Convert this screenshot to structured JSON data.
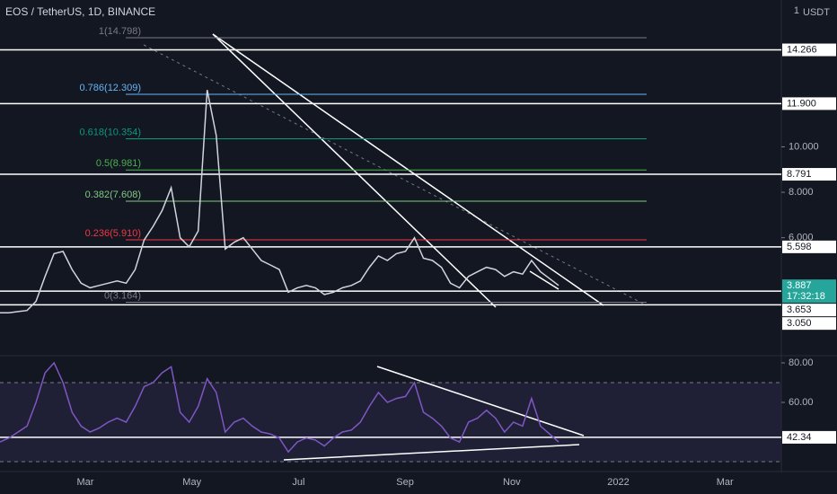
{
  "header": {
    "title": "EOS / TetherUS, 1D, BINANCE"
  },
  "x_labels": [
    "Mar",
    "May",
    "Jul",
    "Sep",
    "Nov",
    "2022",
    "Mar"
  ],
  "chart_data": [
    {
      "type": "line",
      "unit": "USDT",
      "scale_label": "1",
      "ylim": [
        0.85,
        16.46
      ],
      "yticks": [
        {
          "value": 10,
          "label": "10.000"
        },
        {
          "value": 8,
          "label": "8.000"
        },
        {
          "value": 6,
          "label": "6.000"
        }
      ],
      "series": [
        {
          "color": "#d1d4dc",
          "values": [
            2.7,
            2.7,
            2.75,
            2.8,
            3.2,
            4.3,
            5.3,
            5.4,
            4.6,
            4.0,
            3.8,
            3.9,
            4.0,
            4.1,
            4.0,
            4.6,
            5.9,
            6.5,
            7.2,
            8.2,
            6.0,
            5.6,
            6.3,
            12.5,
            10.5,
            5.5,
            5.8,
            6.0,
            5.5,
            5.0,
            4.8,
            4.6,
            3.6,
            3.8,
            3.9,
            3.8,
            3.5,
            3.6,
            3.8,
            3.9,
            4.1,
            4.7,
            5.2,
            5.0,
            5.3,
            5.4,
            6.0,
            5.1,
            5.0,
            4.7,
            4.0,
            3.8,
            4.3,
            4.5,
            4.7,
            4.6,
            4.3,
            4.5,
            4.4,
            5.0,
            4.5,
            4.2,
            3.9
          ]
        }
      ],
      "fib_levels": [
        {
          "value": 14.798,
          "label": "1(14.798)",
          "color": "#787b86"
        },
        {
          "value": 12.309,
          "label": "0.786(12.309)",
          "color": "#64b5f6"
        },
        {
          "value": 10.354,
          "label": "0.618(10.354)",
          "color": "#089981"
        },
        {
          "value": 8.981,
          "label": "0.5(8.981)",
          "color": "#4caf50"
        },
        {
          "value": 7.608,
          "label": "0.382(7.608)",
          "color": "#81c784"
        },
        {
          "value": 5.91,
          "label": "0.236(5.910)",
          "color": "#f23645"
        },
        {
          "value": 3.164,
          "label": "0(3.164)",
          "color": "#787b86"
        }
      ],
      "price_lines": [
        {
          "value": 14.266,
          "label": "14.266"
        },
        {
          "value": 11.9,
          "label": "11.900"
        },
        {
          "value": 8.791,
          "label": "8.791"
        },
        {
          "value": 5.598,
          "label": "5.598"
        },
        {
          "value": 3.653,
          "label": "3.653"
        },
        {
          "value": 3.05,
          "label": "3.050"
        }
      ],
      "last_price": {
        "value": 3.887,
        "label": "3.887",
        "countdown": "17:32:18",
        "color": "#26a69a"
      }
    },
    {
      "type": "line",
      "ylim": [
        27.3,
        84.1
      ],
      "yticks": [
        {
          "value": 80,
          "label": "80.00"
        },
        {
          "value": 60,
          "label": "60.00"
        }
      ],
      "series": [
        {
          "color": "#7e57c2",
          "values": [
            40,
            42,
            45,
            48,
            60,
            75,
            80,
            70,
            55,
            48,
            45,
            47,
            50,
            52,
            50,
            58,
            68,
            70,
            75,
            78,
            55,
            50,
            58,
            72,
            65,
            45,
            50,
            52,
            48,
            45,
            44,
            42,
            35,
            40,
            42,
            41,
            38,
            42,
            45,
            46,
            50,
            58,
            65,
            60,
            62,
            63,
            70,
            55,
            52,
            48,
            42,
            40,
            50,
            52,
            56,
            52,
            45,
            50,
            48,
            62,
            48,
            44,
            40
          ]
        }
      ],
      "price_lines": [
        {
          "value": 42.34,
          "label": "42.34"
        }
      ]
    }
  ]
}
